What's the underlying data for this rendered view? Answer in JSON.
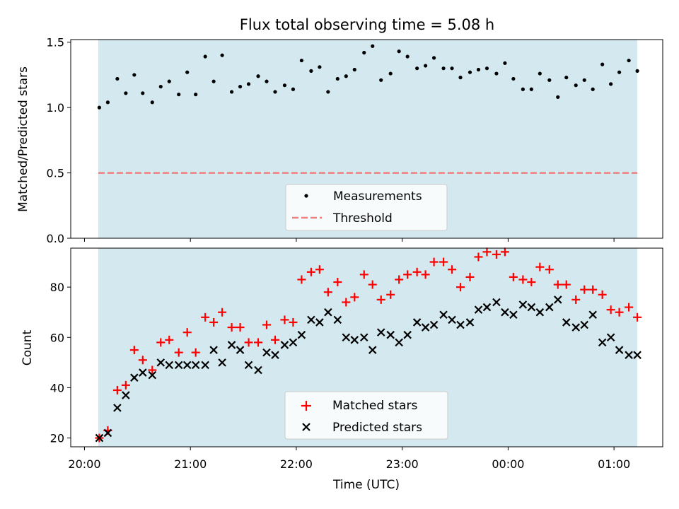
{
  "figure_title": "Flux total observing time = 5.08 h",
  "colors": {
    "shade": "#d4e9ef",
    "threshold": "#f07f7f",
    "matched": "#ff0000",
    "predicted": "#000000",
    "measurement": "#000000"
  },
  "chart_data": [
    {
      "type": "scatter",
      "ylabel": "Matched/Predicted stars",
      "ylim": [
        0.0,
        1.52
      ],
      "yticks": [
        "0.0",
        "0.5",
        "1.0",
        "1.5"
      ],
      "ytick_values": [
        0.0,
        0.5,
        1.0,
        1.5
      ],
      "xlim_hours": [
        19.87,
        25.46
      ],
      "shaded_span_hours": [
        20.13,
        25.22
      ],
      "threshold": 0.5,
      "legend": {
        "placement": "lower center",
        "entries": [
          "Measurements",
          "Threshold"
        ]
      },
      "series": [
        {
          "name": "Measurements",
          "x": [
            20.14,
            20.22,
            20.31,
            20.39,
            20.47,
            20.55,
            20.64,
            20.72,
            20.8,
            20.89,
            20.97,
            21.05,
            21.14,
            21.22,
            21.3,
            21.39,
            21.47,
            21.55,
            21.64,
            21.72,
            21.8,
            21.89,
            21.97,
            22.05,
            22.14,
            22.22,
            22.3,
            22.39,
            22.47,
            22.55,
            22.64,
            22.72,
            22.8,
            22.89,
            22.97,
            23.05,
            23.14,
            23.22,
            23.3,
            23.39,
            23.47,
            23.55,
            23.64,
            23.72,
            23.8,
            23.89,
            23.97,
            24.05,
            24.14,
            24.22,
            24.3,
            24.39,
            24.47,
            24.55,
            24.64,
            24.72,
            24.8,
            24.89,
            24.97,
            25.05,
            25.14,
            25.22
          ],
          "y": [
            1.0,
            1.04,
            1.22,
            1.11,
            1.25,
            1.11,
            1.04,
            1.16,
            1.2,
            1.1,
            1.27,
            1.1,
            1.39,
            1.2,
            1.4,
            1.12,
            1.16,
            1.18,
            1.24,
            1.2,
            1.12,
            1.17,
            1.14,
            1.36,
            1.28,
            1.31,
            1.12,
            1.22,
            1.24,
            1.29,
            1.42,
            1.47,
            1.21,
            1.26,
            1.43,
            1.39,
            1.3,
            1.32,
            1.38,
            1.3,
            1.3,
            1.23,
            1.27,
            1.29,
            1.3,
            1.26,
            1.34,
            1.22,
            1.14,
            1.14,
            1.26,
            1.21,
            1.08,
            1.23,
            1.17,
            1.21,
            1.14,
            1.33,
            1.18,
            1.27,
            1.36,
            1.28
          ]
        }
      ]
    },
    {
      "type": "scatter",
      "xlabel": "Time (UTC)",
      "ylabel": "Count",
      "ylim": [
        16.5,
        95.5
      ],
      "yticks": [
        "20",
        "40",
        "60",
        "80"
      ],
      "ytick_values": [
        20,
        40,
        60,
        80
      ],
      "xlim_hours": [
        19.87,
        25.46
      ],
      "xticks": [
        "20:00",
        "21:00",
        "22:00",
        "23:00",
        "00:00",
        "01:00"
      ],
      "xtick_hours": [
        20,
        21,
        22,
        23,
        24,
        25
      ],
      "shaded_span_hours": [
        20.13,
        25.22
      ],
      "legend": {
        "placement": "lower center",
        "entries": [
          "Matched stars",
          "Predicted stars"
        ]
      },
      "series": [
        {
          "name": "Matched stars",
          "x": [
            20.14,
            20.22,
            20.31,
            20.39,
            20.47,
            20.55,
            20.64,
            20.72,
            20.8,
            20.89,
            20.97,
            21.05,
            21.14,
            21.22,
            21.3,
            21.39,
            21.47,
            21.55,
            21.64,
            21.72,
            21.8,
            21.89,
            21.97,
            22.05,
            22.14,
            22.22,
            22.3,
            22.39,
            22.47,
            22.55,
            22.64,
            22.72,
            22.8,
            22.89,
            22.97,
            23.05,
            23.14,
            23.22,
            23.3,
            23.39,
            23.47,
            23.55,
            23.64,
            23.72,
            23.8,
            23.89,
            23.97,
            24.05,
            24.14,
            24.22,
            24.3,
            24.39,
            24.47,
            24.55,
            24.64,
            24.72,
            24.8,
            24.89,
            24.97,
            25.05,
            25.14,
            25.22
          ],
          "y": [
            20,
            23,
            39,
            41,
            55,
            51,
            47,
            58,
            59,
            54,
            62,
            54,
            68,
            66,
            70,
            64,
            64,
            58,
            58,
            65,
            59,
            67,
            66,
            83,
            86,
            87,
            78,
            82,
            74,
            76,
            85,
            81,
            75,
            77,
            83,
            85,
            86,
            85,
            90,
            90,
            87,
            80,
            84,
            92,
            94,
            93,
            94,
            84,
            83,
            82,
            88,
            87,
            81,
            81,
            75,
            79,
            79,
            77,
            71,
            70,
            72,
            68
          ]
        },
        {
          "name": "Predicted stars",
          "x": [
            20.14,
            20.22,
            20.31,
            20.39,
            20.47,
            20.55,
            20.64,
            20.72,
            20.8,
            20.89,
            20.97,
            21.05,
            21.14,
            21.22,
            21.3,
            21.39,
            21.47,
            21.55,
            21.64,
            21.72,
            21.8,
            21.89,
            21.97,
            22.05,
            22.14,
            22.22,
            22.3,
            22.39,
            22.47,
            22.55,
            22.64,
            22.72,
            22.8,
            22.89,
            22.97,
            23.05,
            23.14,
            23.22,
            23.3,
            23.39,
            23.47,
            23.55,
            23.64,
            23.72,
            23.8,
            23.89,
            23.97,
            24.05,
            24.14,
            24.22,
            24.3,
            24.39,
            24.47,
            24.55,
            24.64,
            24.72,
            24.8,
            24.89,
            24.97,
            25.05,
            25.14,
            25.22
          ],
          "y": [
            20,
            22,
            32,
            37,
            44,
            46,
            45,
            50,
            49,
            49,
            49,
            49,
            49,
            55,
            50,
            57,
            55,
            49,
            47,
            54,
            53,
            57,
            58,
            61,
            67,
            66,
            70,
            67,
            60,
            59,
            60,
            55,
            62,
            61,
            58,
            61,
            66,
            64,
            65,
            69,
            67,
            65,
            66,
            71,
            72,
            74,
            70,
            69,
            73,
            72,
            70,
            72,
            75,
            66,
            64,
            65,
            69,
            58,
            60,
            55,
            53,
            53
          ]
        }
      ]
    }
  ]
}
